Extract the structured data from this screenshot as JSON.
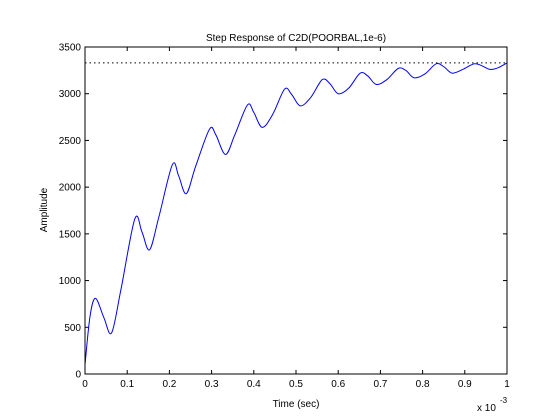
{
  "chart_data": {
    "type": "line",
    "title": "Step Response of C2D(POORBAL,1e-6)",
    "xlabel": "Time (sec)",
    "ylabel": "Amplitude",
    "x_exponent_label": "x 10",
    "x_exponent_power": "-3",
    "xlim": [
      0,
      1
    ],
    "ylim": [
      0,
      3500
    ],
    "xticks": [
      "0",
      "0.1",
      "0.2",
      "0.3",
      "0.4",
      "0.5",
      "0.6",
      "0.7",
      "0.8",
      "0.9",
      "1"
    ],
    "yticks": [
      "0",
      "500",
      "1000",
      "1500",
      "2000",
      "2500",
      "3000",
      "3500"
    ],
    "grid": false,
    "steady_state": 3330,
    "series": [
      {
        "color": "#0000ff",
        "x": [
          0,
          0.012,
          0.025,
          0.045,
          0.063,
          0.085,
          0.118,
          0.135,
          0.153,
          0.175,
          0.207,
          0.222,
          0.24,
          0.262,
          0.295,
          0.31,
          0.333,
          0.355,
          0.385,
          0.4,
          0.42,
          0.445,
          0.473,
          0.49,
          0.51,
          0.535,
          0.562,
          0.58,
          0.6,
          0.625,
          0.652,
          0.67,
          0.69,
          0.715,
          0.742,
          0.76,
          0.78,
          0.805,
          0.832,
          0.85,
          0.87,
          0.895,
          0.922,
          0.94,
          0.96,
          0.98,
          1.0
        ],
        "y": [
          100,
          620,
          810,
          600,
          440,
          900,
          1660,
          1520,
          1330,
          1680,
          2240,
          2120,
          1930,
          2220,
          2620,
          2560,
          2350,
          2560,
          2880,
          2800,
          2640,
          2780,
          3050,
          2990,
          2870,
          2960,
          3150,
          3110,
          3000,
          3060,
          3220,
          3190,
          3100,
          3150,
          3270,
          3250,
          3170,
          3210,
          3320,
          3290,
          3220,
          3260,
          3320,
          3300,
          3260,
          3280,
          3330
        ]
      }
    ]
  }
}
